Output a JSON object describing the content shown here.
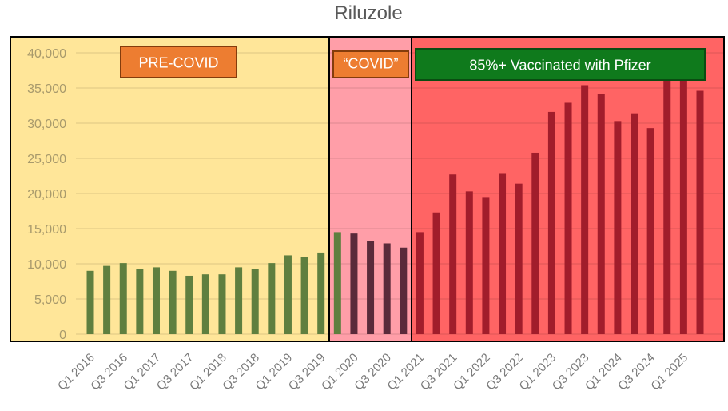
{
  "chart_data": {
    "type": "bar",
    "title": "Riluzole",
    "xlabel": "",
    "ylabel": "",
    "ylim": [
      0,
      40000
    ],
    "yticks": [
      0,
      5000,
      10000,
      15000,
      20000,
      25000,
      30000,
      35000,
      40000
    ],
    "ytick_labels": [
      "0",
      "5,000",
      "10,000",
      "15,000",
      "20,000",
      "25,000",
      "30,000",
      "35,000",
      "40,000"
    ],
    "grid": true,
    "categories": [
      "Q1 2016",
      "Q2 2016",
      "Q3 2016",
      "Q4 2016",
      "Q1 2017",
      "Q2 2017",
      "Q3 2017",
      "Q4 2017",
      "Q1 2018",
      "Q2 2018",
      "Q3 2018",
      "Q4 2018",
      "Q1 2019",
      "Q2 2019",
      "Q3 2019",
      "Q4 2019",
      "Q1 2020",
      "Q2 2020",
      "Q3 2020",
      "Q4 2020",
      "Q1 2021",
      "Q2 2021",
      "Q3 2021",
      "Q4 2021",
      "Q1 2022",
      "Q2 2022",
      "Q3 2022",
      "Q4 2022",
      "Q1 2023",
      "Q2 2023",
      "Q3 2023",
      "Q4 2023",
      "Q1 2024",
      "Q2 2024",
      "Q3 2024",
      "Q4 2024",
      "Q1 2025",
      "Q2 2025"
    ],
    "visible_tick_labels": [
      "Q1 2016",
      "Q3 2016",
      "Q1 2017",
      "Q3 2017",
      "Q1 2018",
      "Q3 2018",
      "Q1 2019",
      "Q3 2019",
      "Q1 2020",
      "Q3 2020",
      "Q1 2021",
      "Q3 2021",
      "Q1 2022",
      "Q3 2022",
      "Q1 2023",
      "Q3 2023",
      "Q1 2024",
      "Q3 2024",
      "Q1 2025"
    ],
    "values": [
      9000,
      9700,
      10100,
      9300,
      9500,
      9000,
      8300,
      8500,
      8500,
      9500,
      9300,
      10100,
      11200,
      11000,
      11600,
      14500,
      14300,
      13200,
      12900,
      12300,
      14500,
      17300,
      22700,
      20300,
      19500,
      22900,
      21400,
      25800,
      31600,
      32900,
      35400,
      34200,
      30300,
      31400,
      29300,
      36300,
      36600,
      34600
    ],
    "regions": [
      {
        "label": "PRE-COVID",
        "start_index": 0,
        "end_index": 15,
        "background": "#ffe699",
        "bar_color": "#5f7f3f",
        "label_bg": "#ed7d31",
        "label_border": "#843c0c"
      },
      {
        "label": "“COVID”",
        "start_index": 16,
        "end_index": 19,
        "background": "#ff9ea8",
        "bar_color": "#5a2a3a",
        "label_bg": "#ed7d31",
        "label_border": "#843c0c"
      },
      {
        "label": "85%+ Vaccinated with Pfizer",
        "start_index": 20,
        "end_index": 37,
        "background": "#ff6464",
        "bar_color": "#a11d2b",
        "label_bg": "#0f7a1c",
        "label_border": "#0a4d12"
      }
    ]
  }
}
